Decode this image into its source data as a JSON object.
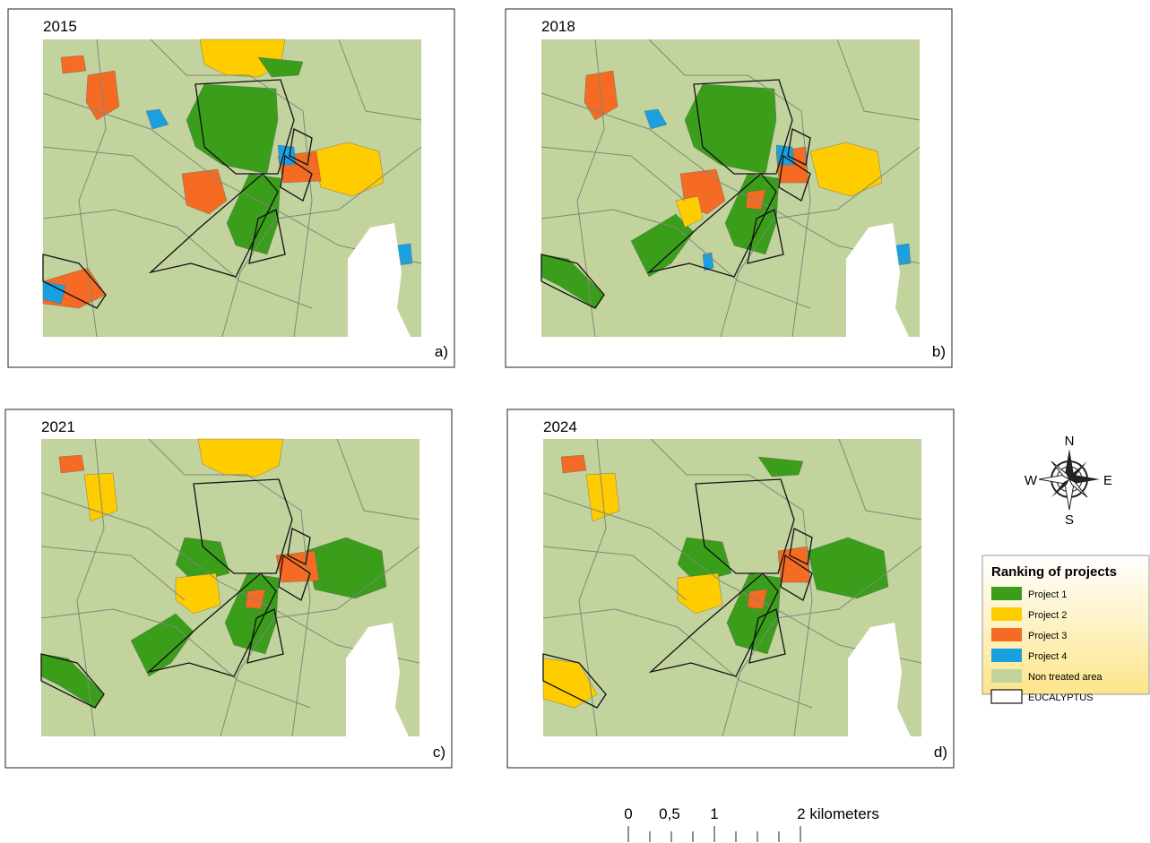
{
  "panels": [
    {
      "year": "2015",
      "label": "a)"
    },
    {
      "year": "2018",
      "label": "b)"
    },
    {
      "year": "2021",
      "label": "c)"
    },
    {
      "year": "2024",
      "label": "d)"
    }
  ],
  "compass": {
    "n": "N",
    "e": "E",
    "s": "S",
    "w": "W"
  },
  "legend": {
    "title": "Ranking of projects",
    "items": [
      {
        "name": "Project 1",
        "color": "#3a9e1a"
      },
      {
        "name": "Project 2",
        "color": "#ffcc00"
      },
      {
        "name": "Project 3",
        "color": "#f56b23"
      },
      {
        "name": "Project 4",
        "color": "#1aa0e0"
      },
      {
        "name": "Non treated area",
        "color": "#c2d39e"
      },
      {
        "name": "EUCALYPTUS",
        "color": "#ffffff"
      }
    ]
  },
  "scale_bar": {
    "labels": [
      "0",
      "0,5",
      "1",
      "2 kilometers"
    ]
  }
}
